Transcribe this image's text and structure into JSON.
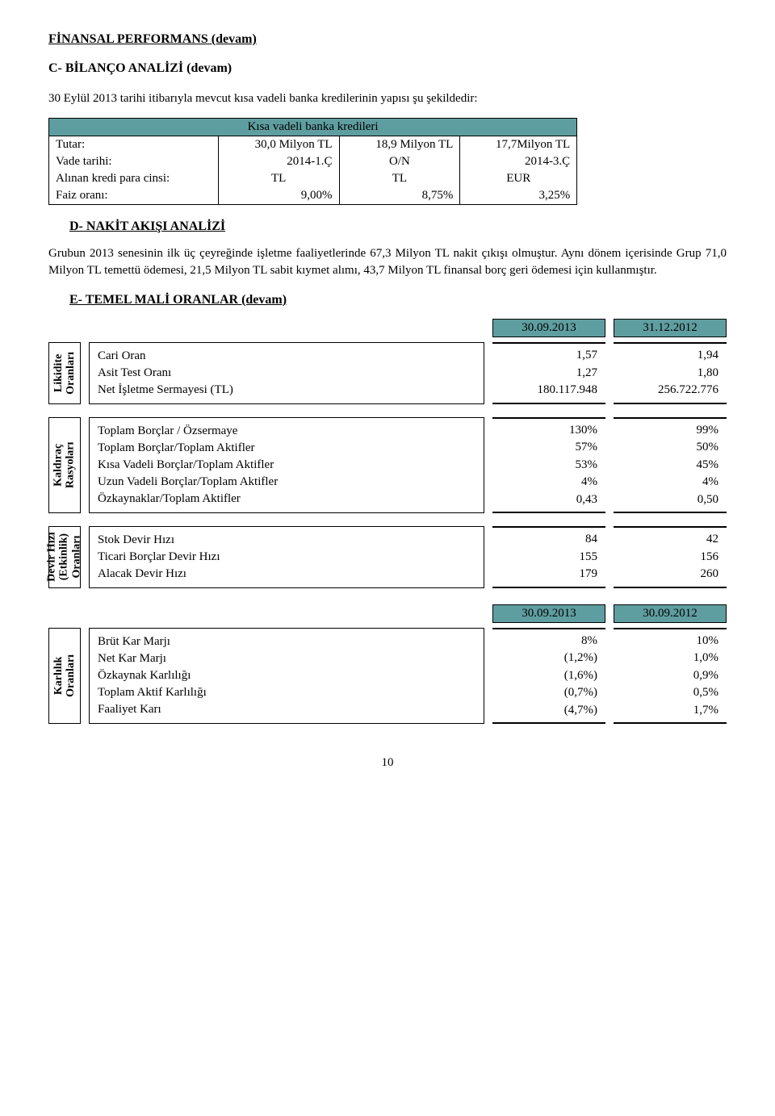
{
  "headings": {
    "h1": "FİNANSAL PERFORMANS (devam)",
    "h2": "C- BİLANÇO ANALİZİ (devam)",
    "p1": "30 Eylül 2013 tarihi itibarıyla mevcut kısa vadeli banka kredilerinin yapısı şu şekildedir:",
    "h3": "D- NAKİT AKIŞI ANALİZİ",
    "p2": "Grubun 2013 senesinin ilk üç çeyreğinde işletme faaliyetlerinde 67,3 Milyon TL nakit çıkışı olmuştur. Aynı dönem içerisinde Grup 71,0 Milyon TL temettü ödemesi, 21,5 Milyon TL sabit kıymet alımı, 43,7 Milyon TL finansal borç geri ödemesi için kullanmıştır.",
    "h4": "E- TEMEL MALİ ORANLAR (devam)"
  },
  "credit_table": {
    "header": "Kısa vadeli banka kredileri",
    "rows": [
      {
        "label": "Tutar:",
        "c1": "30,0 Milyon TL",
        "c2": "18,9 Milyon TL",
        "c3": "17,7Milyon TL"
      },
      {
        "label": "Vade tarihi:",
        "c1": "2014-1.Ç",
        "c2": "O/N",
        "c3": "2014-3.Ç"
      },
      {
        "label": "Alınan kredi para cinsi:",
        "c1": "TL",
        "c2": "TL",
        "c3": "EUR"
      },
      {
        "label": "Faiz oranı:",
        "c1": "9,00%",
        "c2": "8,75%",
        "c3": "3,25%"
      }
    ]
  },
  "dates1": {
    "d1": "30.09.2013",
    "d2": "31.12.2012"
  },
  "dates2": {
    "d1": "30.09.2013",
    "d2": "30.09.2012"
  },
  "sections": {
    "likidite": {
      "vlabel": "Likidite\nOranları",
      "rows": [
        {
          "name": "Cari Oran",
          "v1": "1,57",
          "v2": "1,94"
        },
        {
          "name": "Asit Test Oranı",
          "v1": "1,27",
          "v2": "1,80"
        },
        {
          "name": "Net İşletme Sermayesi (TL)",
          "v1": "180.117.948",
          "v2": "256.722.776"
        }
      ]
    },
    "kaldirac": {
      "vlabel": "Kaldıraç\nRasyoları",
      "rows": [
        {
          "name": "Toplam Borçlar / Özsermaye",
          "v1": "130%",
          "v2": "99%"
        },
        {
          "name": "Toplam Borçlar/Toplam Aktifler",
          "v1": "57%",
          "v2": "50%"
        },
        {
          "name": "Kısa Vadeli Borçlar/Toplam Aktifler",
          "v1": "53%",
          "v2": "45%"
        },
        {
          "name": "Uzun Vadeli Borçlar/Toplam Aktifler",
          "v1": "4%",
          "v2": "4%"
        },
        {
          "name": "Özkaynaklar/Toplam Aktifler",
          "v1": "0,43",
          "v2": "0,50"
        }
      ]
    },
    "devir": {
      "vlabel": "Devir Hızı\n(Etkinlik)\nOranları",
      "rows": [
        {
          "name": "Stok Devir Hızı",
          "v1": "84",
          "v2": "42"
        },
        {
          "name": "Ticari Borçlar Devir Hızı",
          "v1": "155",
          "v2": "156"
        },
        {
          "name": "Alacak Devir Hızı",
          "v1": "179",
          "v2": "260"
        }
      ]
    },
    "karlilik": {
      "vlabel": "Karlılık\nOranları",
      "rows": [
        {
          "name": "Brüt Kar Marjı",
          "v1": "8%",
          "v2": "10%"
        },
        {
          "name": "Net Kar Marjı",
          "v1": "(1,2%)",
          "v2": "1,0%"
        },
        {
          "name": "Özkaynak Karlılığı",
          "v1": "(1,6%)",
          "v2": "0,9%"
        },
        {
          "name": "Toplam Aktif Karlılığı",
          "v1": "(0,7%)",
          "v2": "0,5%"
        },
        {
          "name": "Faaliyet Karı",
          "v1": "(4,7%)",
          "v2": "1,7%"
        }
      ]
    }
  },
  "page_no": "10"
}
